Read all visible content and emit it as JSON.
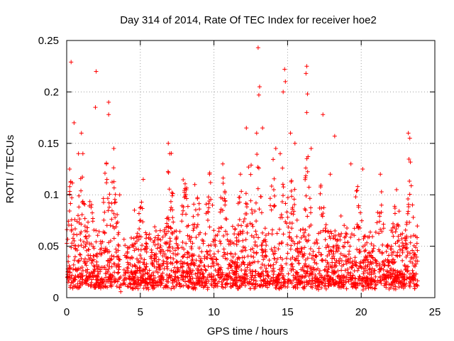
{
  "chart_data": {
    "type": "scatter",
    "title": "Day 314 of 2014, Rate Of TEC Index for receiver hoe2",
    "xlabel": "GPS time / hours",
    "ylabel": "ROTI / TECUs",
    "xlim": [
      0,
      25
    ],
    "ylim": [
      0,
      0.25
    ],
    "xticks": [
      0,
      5,
      10,
      15,
      20,
      25
    ],
    "yticks": [
      0,
      0.05,
      0.1,
      0.15,
      0.2,
      0.25
    ],
    "xtick_labels": [
      "0",
      "5",
      "10",
      "15",
      "20",
      "25"
    ],
    "ytick_labels": [
      "0",
      "0.05",
      "0.1",
      "0.15",
      "0.2",
      "0.25"
    ],
    "grid": true,
    "marker": "+",
    "color": "#ff0000",
    "series": [
      {
        "name": "hoe2",
        "points": [
          [
            0.3,
            0.229
          ],
          [
            2.0,
            0.22
          ],
          [
            1.95,
            0.185
          ],
          [
            2.85,
            0.19
          ],
          [
            2.85,
            0.178
          ],
          [
            3.2,
            0.145
          ],
          [
            13.0,
            0.243
          ],
          [
            13.1,
            0.205
          ],
          [
            13.05,
            0.197
          ],
          [
            14.8,
            0.222
          ],
          [
            14.85,
            0.21
          ],
          [
            14.7,
            0.2
          ],
          [
            16.3,
            0.225
          ],
          [
            16.25,
            0.218
          ],
          [
            16.35,
            0.198
          ],
          [
            16.3,
            0.18
          ],
          [
            17.4,
            0.178
          ],
          [
            18.2,
            0.157
          ],
          [
            23.2,
            0.16
          ],
          [
            23.3,
            0.155
          ],
          [
            0.5,
            0.17
          ],
          [
            1.0,
            0.16
          ],
          [
            1.1,
            0.14
          ],
          [
            0.8,
            0.14
          ],
          [
            6.9,
            0.15
          ],
          [
            7.0,
            0.14
          ],
          [
            12.2,
            0.165
          ],
          [
            12.9,
            0.16
          ],
          [
            13.3,
            0.165
          ],
          [
            15.2,
            0.16
          ],
          [
            15.5,
            0.15
          ],
          [
            16.6,
            0.145
          ],
          [
            14.2,
            0.145
          ],
          [
            14.5,
            0.14
          ],
          [
            5.2,
            0.115
          ],
          [
            9.7,
            0.12
          ],
          [
            10.6,
            0.13
          ],
          [
            20.1,
            0.125
          ],
          [
            21.3,
            0.12
          ],
          [
            2.7,
            0.13
          ],
          [
            0.2,
            0.125
          ],
          [
            3.6,
            0.1
          ],
          [
            4.6,
            0.085
          ],
          [
            8.7,
            0.11
          ],
          [
            11.8,
            0.12
          ],
          [
            17.9,
            0.12
          ],
          [
            19.3,
            0.13
          ],
          [
            22.4,
            0.105
          ]
        ]
      }
    ]
  }
}
